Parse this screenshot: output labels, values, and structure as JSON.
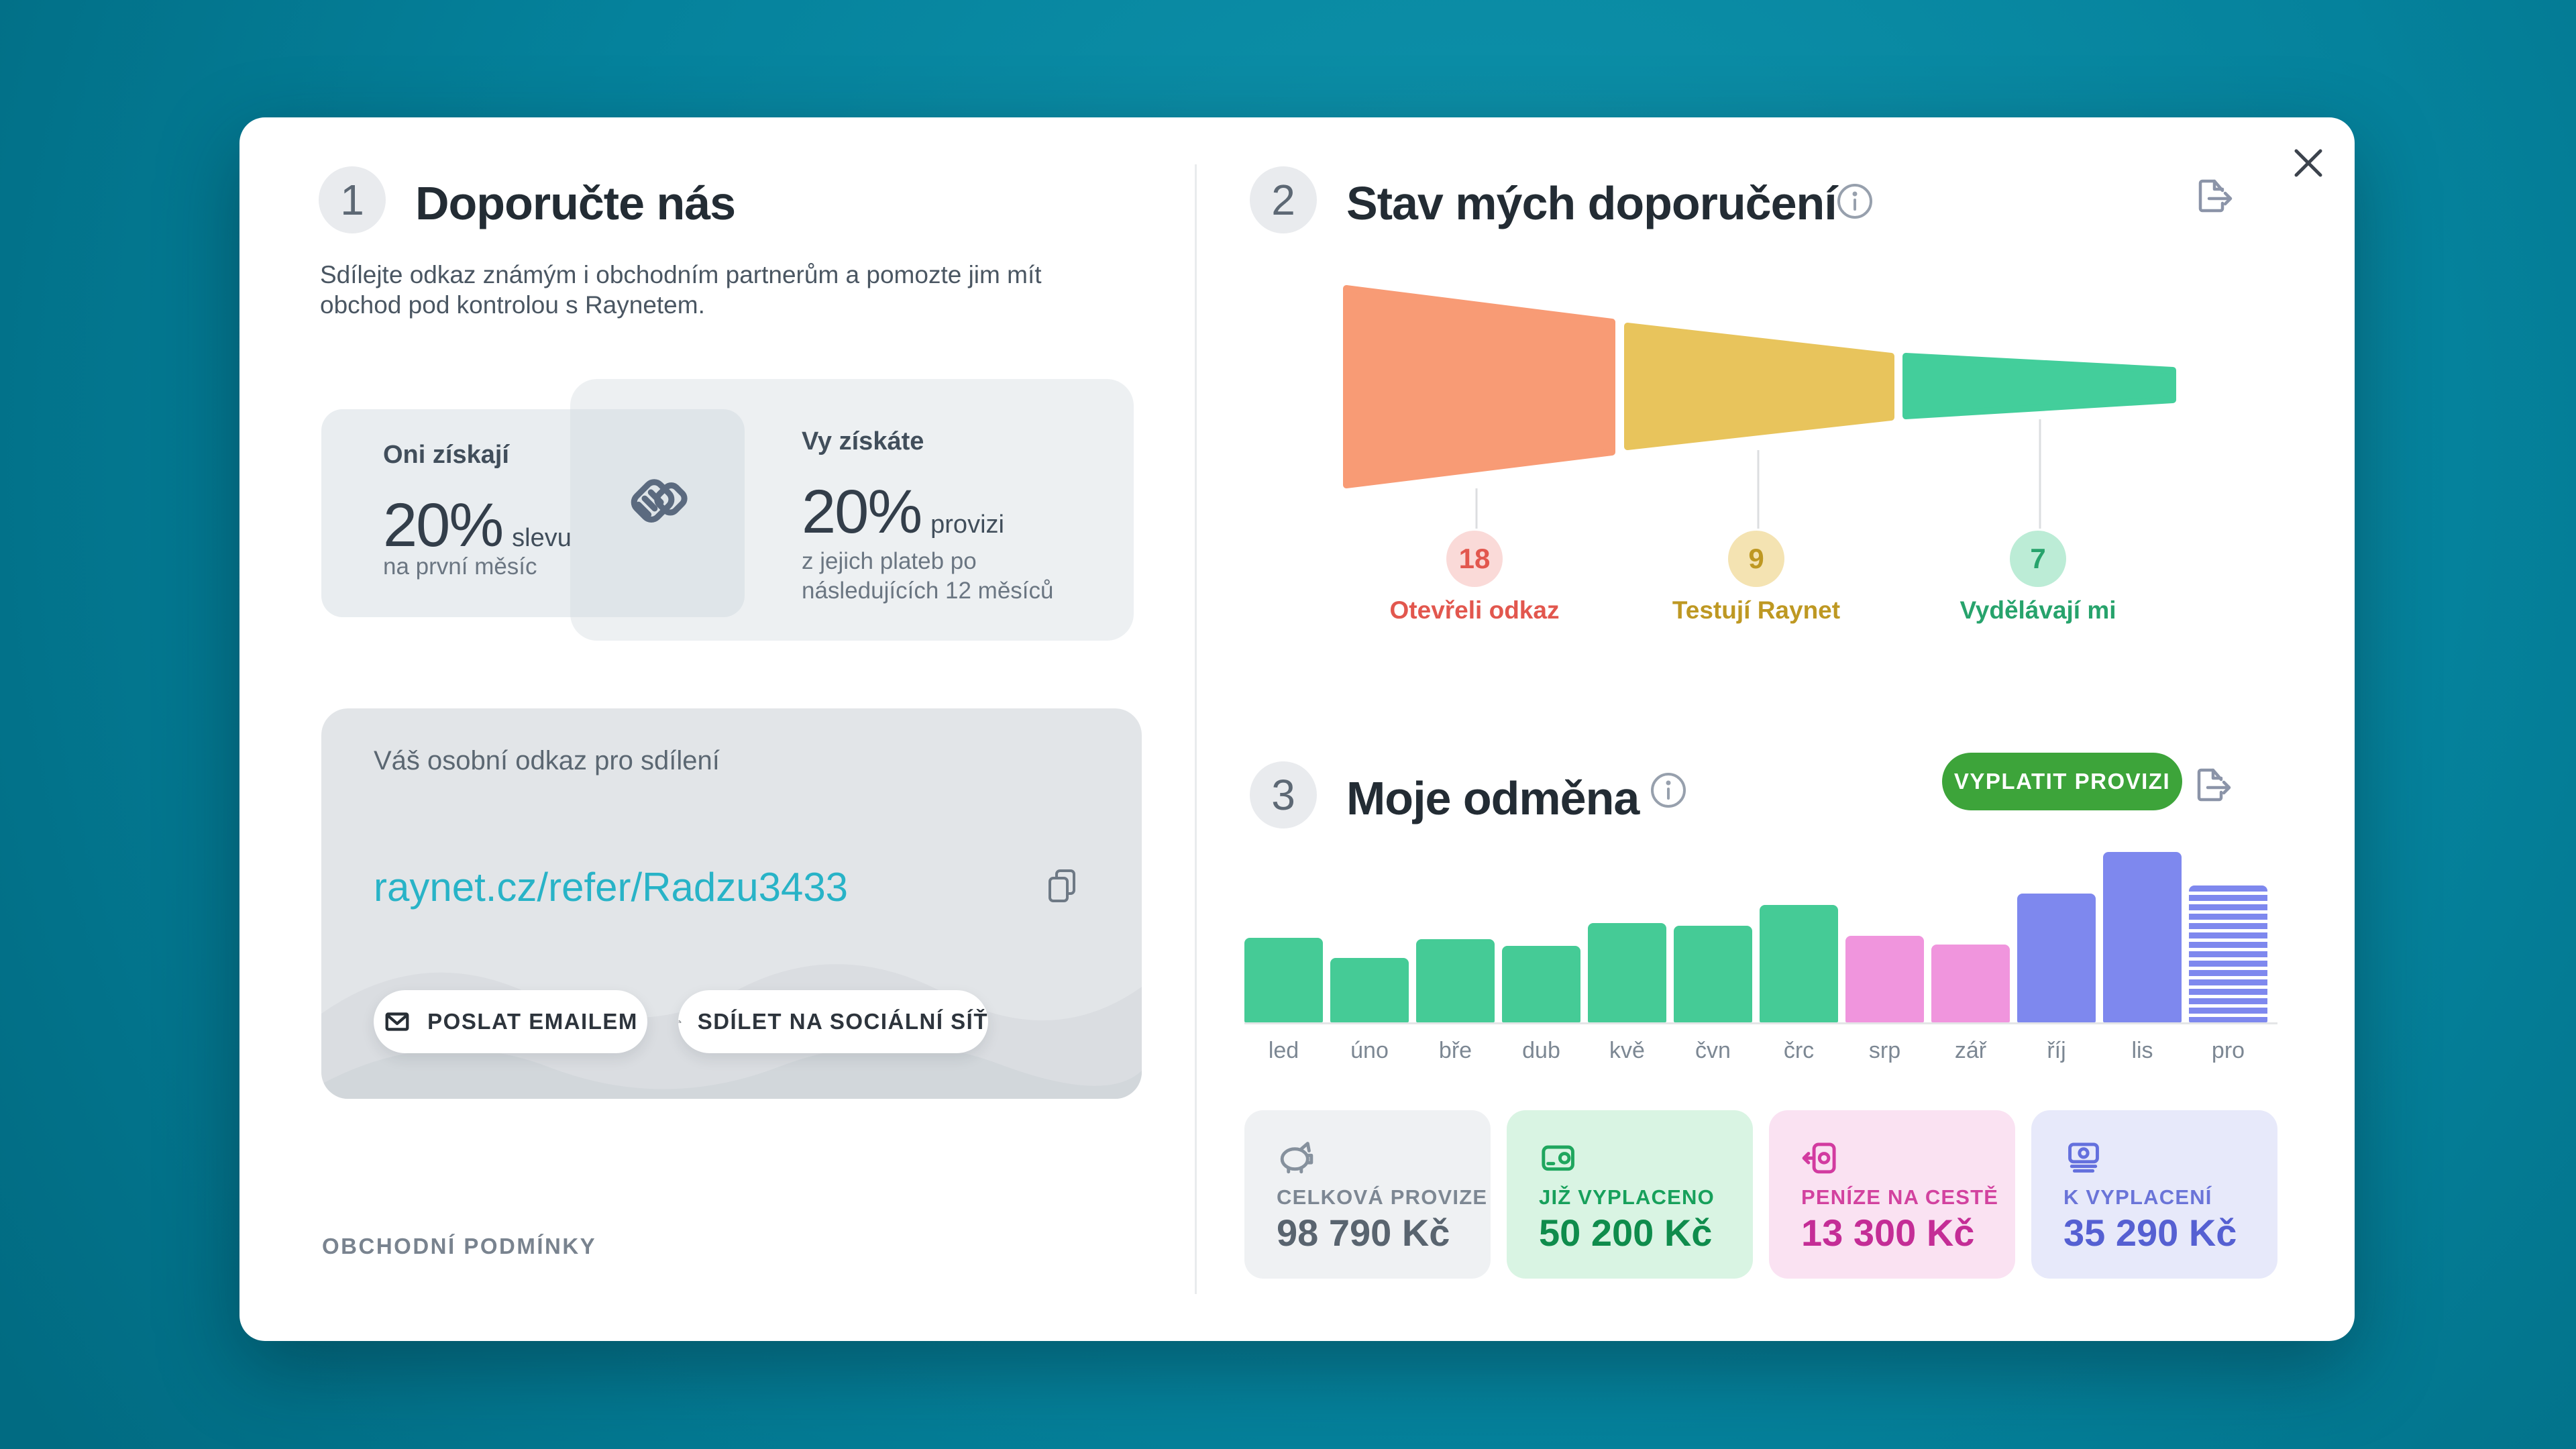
{
  "left": {
    "step_number": "1",
    "title": "Doporučte nás",
    "intro": "Sdílejte odkaz známým i obchodním partnerům a pomozte jim mít obchod pod kontrolou s Raynetem.",
    "benefits": {
      "they": {
        "heading": "Oni získají",
        "percent": "20%",
        "percent_suffix": "slevu",
        "note": "na první měsíc"
      },
      "you": {
        "heading": "Vy získáte",
        "percent": "20%",
        "percent_suffix": "provizi",
        "note": "z jejich plateb po následujících 12 měsíců"
      }
    },
    "share": {
      "label": "Váš osobní odkaz pro sdílení",
      "link": "raynet.cz/refer/Radzu3433",
      "email_button": "POSLAT EMAILEM",
      "social_button": "SDÍLET NA SOCIÁLNÍ SÍŤ"
    },
    "terms_link": "OBCHODNÍ PODMÍNKY"
  },
  "referrals": {
    "step_number": "2",
    "title": "Stav mých doporučení",
    "chart_data": {
      "type": "funnel",
      "stages": [
        {
          "label": "Otevřeli odkaz",
          "count": 18,
          "color": "#F89B75",
          "badge_bg": "#FADAD8",
          "text_color": "#E2574E"
        },
        {
          "label": "Testují Raynet",
          "count": 9,
          "color": "#E8C45C",
          "badge_bg": "#F4E3B2",
          "text_color": "#BE9822"
        },
        {
          "label": "Vydělávají mi",
          "count": 7,
          "color": "#43CE9B",
          "badge_bg": "#BCECD6",
          "text_color": "#27A36C"
        }
      ]
    }
  },
  "reward": {
    "step_number": "3",
    "title": "Moje odměna",
    "payout_button": "VYPLATIT PROVIZI",
    "chart_data": {
      "type": "bar",
      "categories": [
        "led",
        "úno",
        "bře",
        "dub",
        "kvě",
        "čvn",
        "črc",
        "srp",
        "zář",
        "říj",
        "lis",
        "pro"
      ],
      "values": [
        126,
        96,
        124,
        114,
        148,
        144,
        175,
        129,
        116,
        192,
        254,
        204
      ],
      "value_unit": "relative bar height, no axis scale shown",
      "colors": [
        "#45CB96",
        "#45CB96",
        "#45CB96",
        "#45CB96",
        "#45CB96",
        "#45CB96",
        "#45CB96",
        "#F095DD",
        "#F095DD",
        "#7E88EE",
        "#7E88EE",
        "#7E88EE"
      ],
      "patterns": [
        "solid",
        "solid",
        "solid",
        "solid",
        "solid",
        "solid",
        "solid",
        "solid",
        "solid",
        "solid",
        "solid",
        "striped"
      ],
      "xlabel": "",
      "ylabel": "",
      "grid": false,
      "legend": false
    },
    "stats": [
      {
        "label": "CELKOVÁ PROVIZE",
        "value": "98 790 Kč",
        "icon": "piggy-bank-icon",
        "bg": "#EFF1F3",
        "label_color": "#7D8793",
        "value_color": "#59646F",
        "icon_color": "#86919D"
      },
      {
        "label": "JIŽ VYPLACENO",
        "value": "50 200 Kč",
        "icon": "wallet-icon",
        "bg": "#D9F4E3",
        "label_color": "#17A05B",
        "value_color": "#0F8C4C",
        "icon_color": "#1FA65E"
      },
      {
        "label": "PENÍZE NA CESTĚ",
        "value": "13 300 Kč",
        "icon": "money-incoming-icon",
        "bg": "#FAE2F2",
        "label_color": "#D2429F",
        "value_color": "#C42D96",
        "icon_color": "#D23BA0"
      },
      {
        "label": "K VYPLACENÍ",
        "value": "35 290 Kč",
        "icon": "banknotes-icon",
        "bg": "#E7E9FA",
        "label_color": "#6A74D8",
        "value_color": "#5560D2",
        "icon_color": "#6470DD"
      }
    ]
  }
}
